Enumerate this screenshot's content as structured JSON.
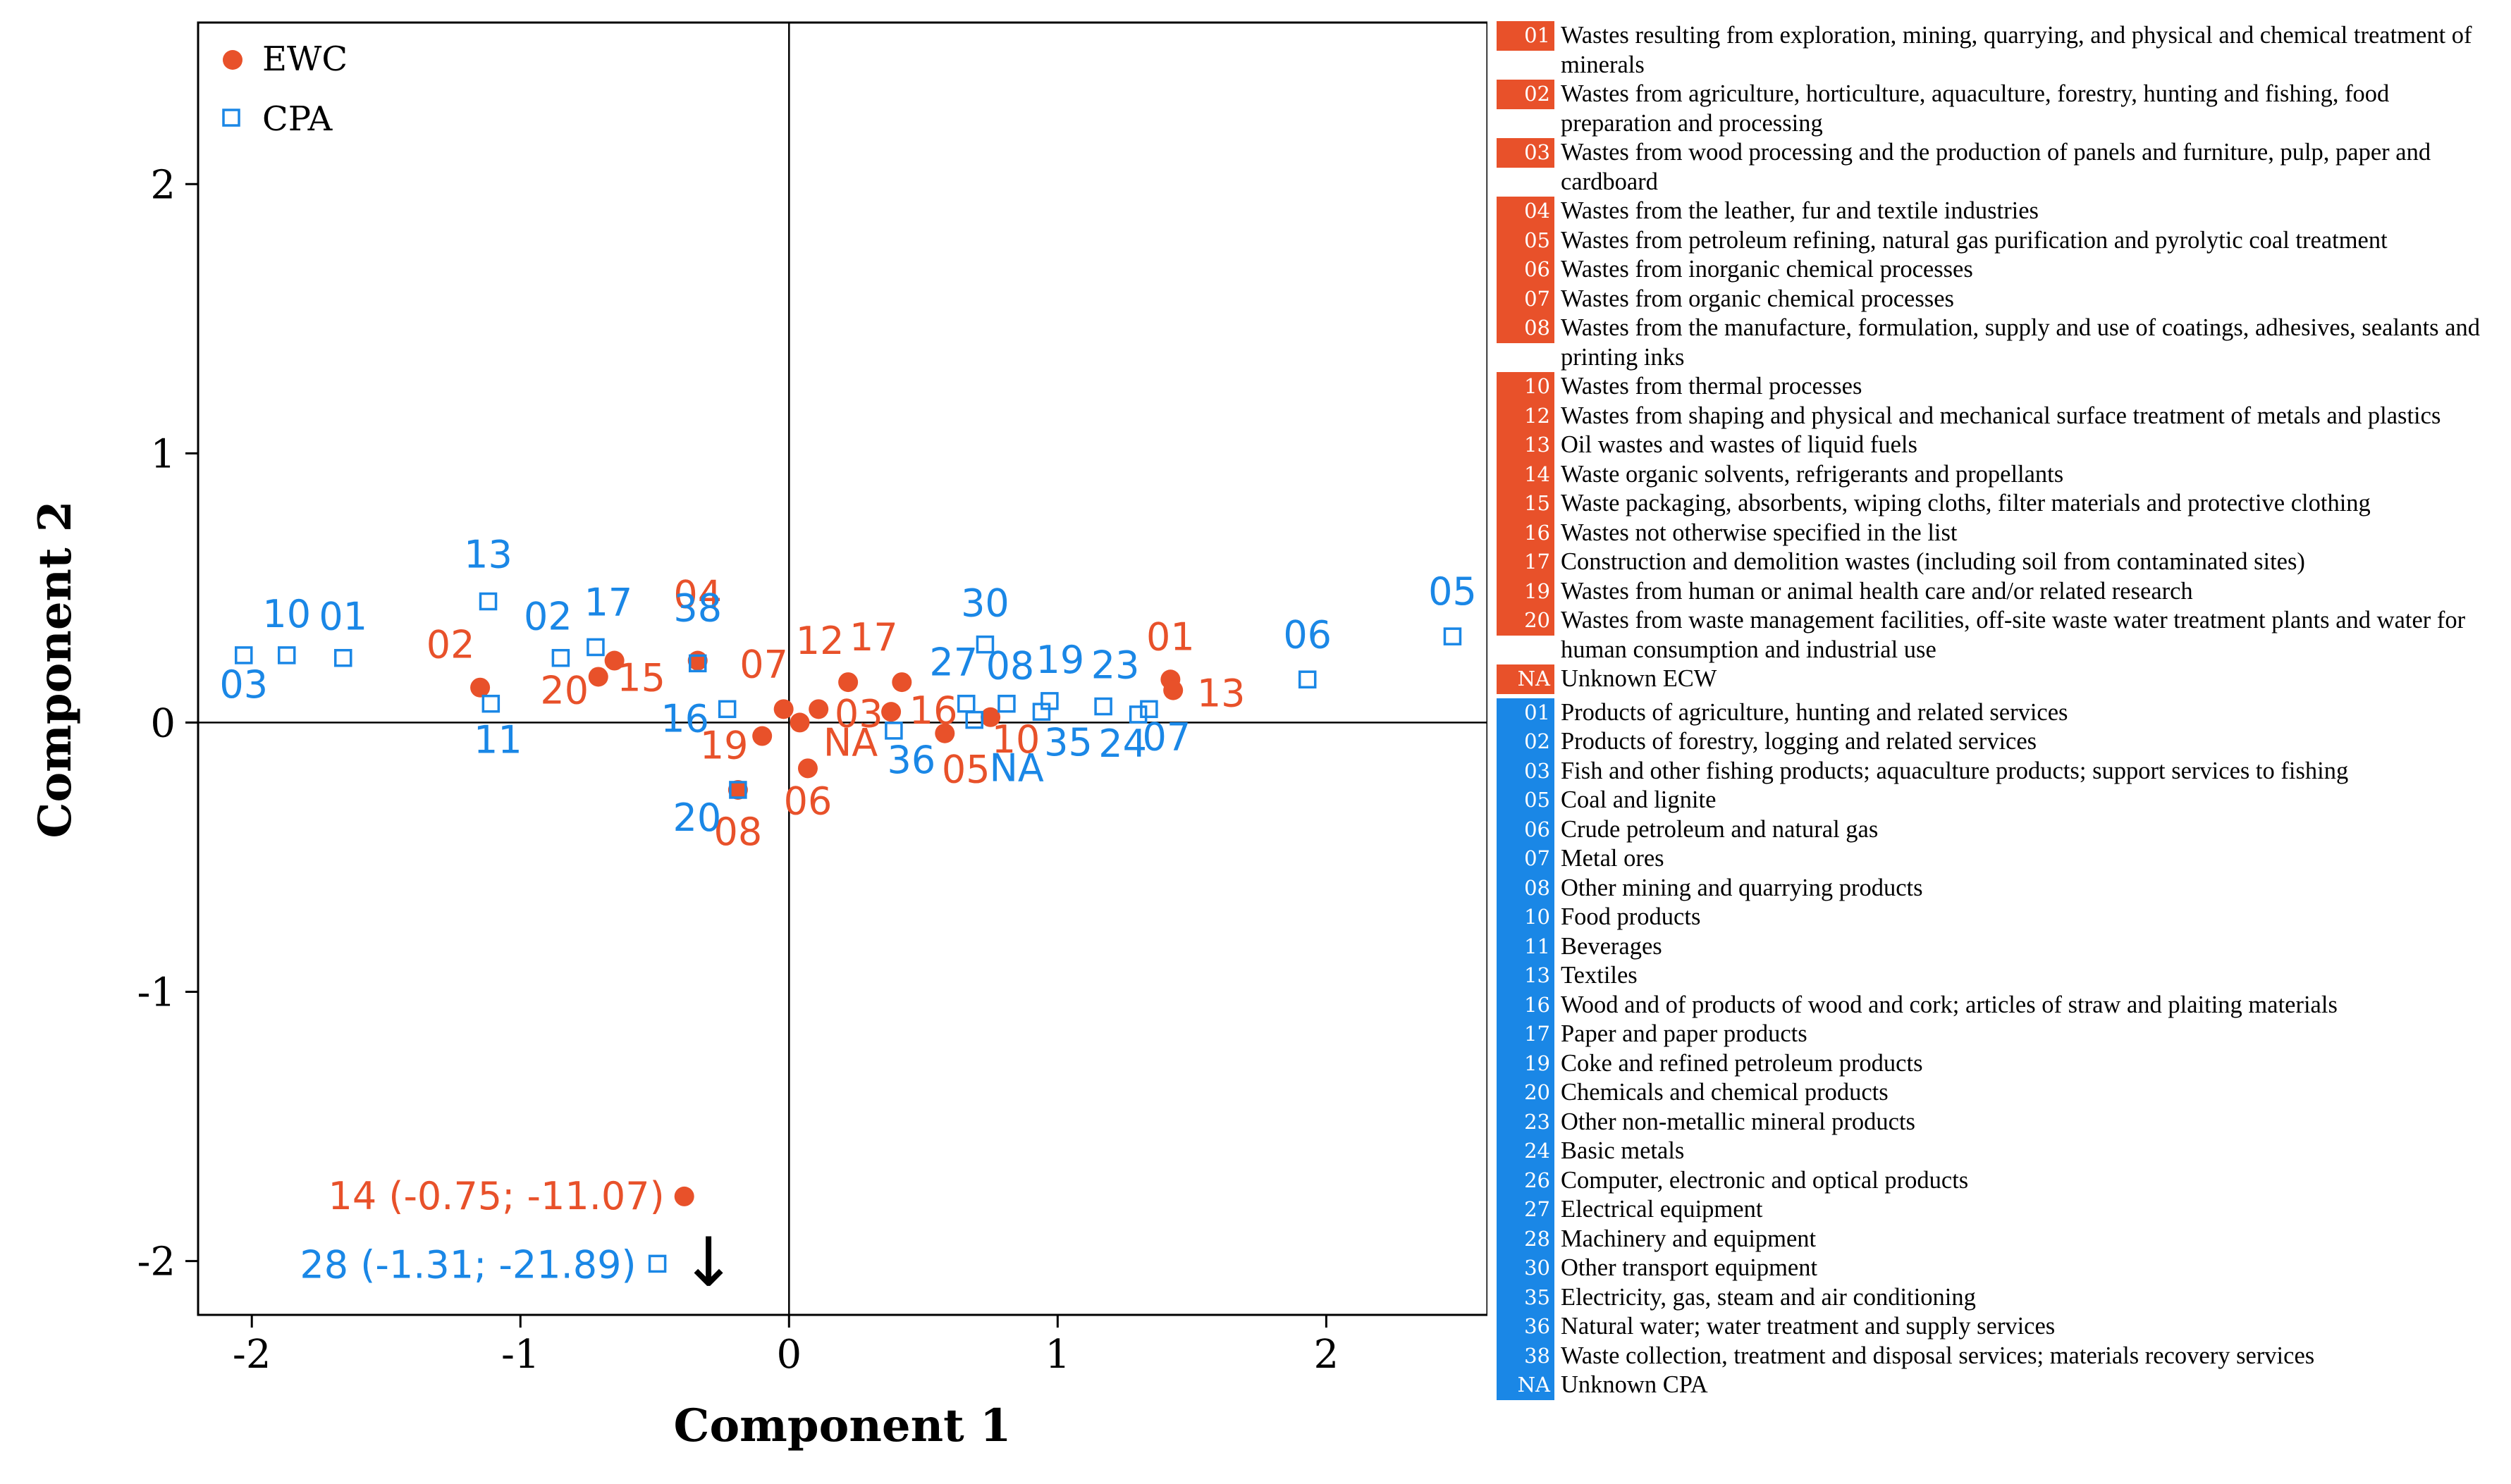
{
  "colors": {
    "ewc": "#e8512a",
    "cpa": "#1a87e6",
    "axis": "#000000"
  },
  "chart_data": {
    "type": "scatter",
    "xlabel": "Component 1",
    "ylabel": "Component 2",
    "xlim": [
      -2.2,
      2.6
    ],
    "ylim": [
      -2.2,
      2.6
    ],
    "xticks": [
      "-2",
      "-1",
      "0",
      "1",
      "2"
    ],
    "yticks": [
      "-2",
      "-1",
      "0",
      "1",
      "2"
    ],
    "legend_position": "top-left",
    "series": [
      {
        "name": "EWC",
        "marker": "filled-circle",
        "points": [
          {
            "label": "01",
            "x": 1.42,
            "y": 0.16
          },
          {
            "label": "13",
            "x": 1.43,
            "y": 0.12
          },
          {
            "label": "02",
            "x": -1.15,
            "y": 0.13
          },
          {
            "label": "20",
            "x": -0.71,
            "y": 0.17
          },
          {
            "label": "15",
            "x": -0.65,
            "y": 0.23
          },
          {
            "label": "04",
            "x": -0.34,
            "y": 0.23
          },
          {
            "label": "08",
            "x": -0.19,
            "y": -0.25
          },
          {
            "label": "07",
            "x": -0.02,
            "y": 0.05
          },
          {
            "label": "19",
            "x": -0.1,
            "y": -0.05
          },
          {
            "label": "NA",
            "x": 0.04,
            "y": 0.0
          },
          {
            "label": "06",
            "x": 0.07,
            "y": -0.17
          },
          {
            "label": "03",
            "x": 0.11,
            "y": 0.05
          },
          {
            "label": "12",
            "x": 0.22,
            "y": 0.15
          },
          {
            "label": "16",
            "x": 0.38,
            "y": 0.04
          },
          {
            "label": "17",
            "x": 0.42,
            "y": 0.15
          },
          {
            "label": "05",
            "x": 0.58,
            "y": -0.04
          },
          {
            "label": "10",
            "x": 0.75,
            "y": 0.02
          },
          {
            "label": "14 (-0.75; -11.07)",
            "x": -0.39,
            "y": -1.76
          }
        ]
      },
      {
        "name": "CPA",
        "marker": "open-square",
        "points": [
          {
            "label": "03",
            "x": -2.03,
            "y": 0.25
          },
          {
            "label": "10",
            "x": -1.87,
            "y": 0.25
          },
          {
            "label": "01",
            "x": -1.66,
            "y": 0.24
          },
          {
            "label": "13",
            "x": -1.12,
            "y": 0.45
          },
          {
            "label": "11",
            "x": -1.11,
            "y": 0.07
          },
          {
            "label": "02",
            "x": -0.85,
            "y": 0.24
          },
          {
            "label": "17",
            "x": -0.72,
            "y": 0.28
          },
          {
            "label": "38",
            "x": -0.34,
            "y": 0.22
          },
          {
            "label": "16",
            "x": -0.23,
            "y": 0.05
          },
          {
            "label": "20",
            "x": -0.19,
            "y": -0.25
          },
          {
            "label": "36",
            "x": 0.39,
            "y": -0.03
          },
          {
            "label": "27",
            "x": 0.66,
            "y": 0.07
          },
          {
            "label": "NA",
            "x": 0.69,
            "y": 0.01
          },
          {
            "label": "30",
            "x": 0.73,
            "y": 0.29
          },
          {
            "label": "08",
            "x": 0.81,
            "y": 0.07
          },
          {
            "label": "35",
            "x": 0.94,
            "y": 0.04
          },
          {
            "label": "19",
            "x": 0.97,
            "y": 0.08
          },
          {
            "label": "23",
            "x": 1.17,
            "y": 0.06
          },
          {
            "label": "24",
            "x": 1.3,
            "y": 0.03
          },
          {
            "label": "07",
            "x": 1.34,
            "y": 0.05
          },
          {
            "label": "06",
            "x": 1.93,
            "y": 0.16
          },
          {
            "label": "05",
            "x": 2.47,
            "y": 0.32
          },
          {
            "label": "28 (-1.31; -21.89)",
            "x": -0.49,
            "y": -2.01
          }
        ]
      }
    ],
    "annotations": [
      {
        "type": "arrow",
        "symbol": "↓",
        "x": -0.31,
        "y": -2.0
      }
    ]
  },
  "legend": {
    "ewc": [
      {
        "code": "01",
        "text": "Wastes resulting from exploration, mining, quarrying, and physical and chemical treatment of minerals"
      },
      {
        "code": "02",
        "text": "Wastes from agriculture, horticulture, aquaculture, forestry, hunting and fishing, food preparation and processing"
      },
      {
        "code": "03",
        "text": "Wastes from wood processing and the production of panels and furniture, pulp, paper and cardboard"
      },
      {
        "code": "04",
        "text": "Wastes from the leather, fur and textile industries"
      },
      {
        "code": "05",
        "text": "Wastes from petroleum refining, natural gas purification and pyrolytic coal treatment"
      },
      {
        "code": "06",
        "text": "Wastes from inorganic chemical processes"
      },
      {
        "code": "07",
        "text": "Wastes from organic chemical processes"
      },
      {
        "code": "08",
        "text": "Wastes from the manufacture, formulation, supply and use of coatings, adhesives, sealants and printing inks"
      },
      {
        "code": "10",
        "text": "Wastes from thermal processes"
      },
      {
        "code": "12",
        "text": "Wastes from shaping and physical and mechanical surface treatment of metals and plastics"
      },
      {
        "code": "13",
        "text": "Oil wastes and wastes of liquid fuels"
      },
      {
        "code": "14",
        "text": "Waste organic solvents, refrigerants and propellants"
      },
      {
        "code": "15",
        "text": "Waste packaging, absorbents, wiping cloths, filter materials and protective clothing"
      },
      {
        "code": "16",
        "text": "Wastes not otherwise specified in the list"
      },
      {
        "code": "17",
        "text": "Construction and demolition wastes (including soil from contaminated sites)"
      },
      {
        "code": "19",
        "text": "Wastes from human or animal health care and/or related research"
      },
      {
        "code": "20",
        "text": "Wastes from waste management facilities, off-site waste water treatment plants and water for human consumption and industrial use"
      },
      {
        "code": "NA",
        "text": "Unknown ECW"
      }
    ],
    "cpa": [
      {
        "code": "01",
        "text": "Products of agriculture, hunting and related services"
      },
      {
        "code": "02",
        "text": "Products of forestry, logging and related services"
      },
      {
        "code": "03",
        "text": "Fish and other fishing products; aquaculture products; support services to fishing"
      },
      {
        "code": "05",
        "text": "Coal and lignite"
      },
      {
        "code": "06",
        "text": "Crude petroleum and natural gas"
      },
      {
        "code": "07",
        "text": "Metal ores"
      },
      {
        "code": "08",
        "text": "Other mining and quarrying products"
      },
      {
        "code": "10",
        "text": "Food products"
      },
      {
        "code": "11",
        "text": "Beverages"
      },
      {
        "code": "13",
        "text": "Textiles"
      },
      {
        "code": "16",
        "text": "Wood and of products of wood and cork; articles of straw and plaiting materials"
      },
      {
        "code": "17",
        "text": "Paper and paper products"
      },
      {
        "code": "19",
        "text": "Coke and refined petroleum products"
      },
      {
        "code": "20",
        "text": "Chemicals and chemical products"
      },
      {
        "code": "23",
        "text": "Other non-metallic mineral products"
      },
      {
        "code": "24",
        "text": "Basic metals"
      },
      {
        "code": "26",
        "text": "Computer, electronic and optical products"
      },
      {
        "code": "27",
        "text": "Electrical equipment"
      },
      {
        "code": "28",
        "text": "Machinery and equipment"
      },
      {
        "code": "30",
        "text": "Other transport equipment"
      },
      {
        "code": "35",
        "text": "Electricity, gas, steam and air conditioning"
      },
      {
        "code": "36",
        "text": "Natural water; water treatment and supply services"
      },
      {
        "code": "38",
        "text": "Waste collection, treatment and disposal services; materials recovery services"
      },
      {
        "code": "NA",
        "text": "Unknown CPA"
      }
    ]
  }
}
